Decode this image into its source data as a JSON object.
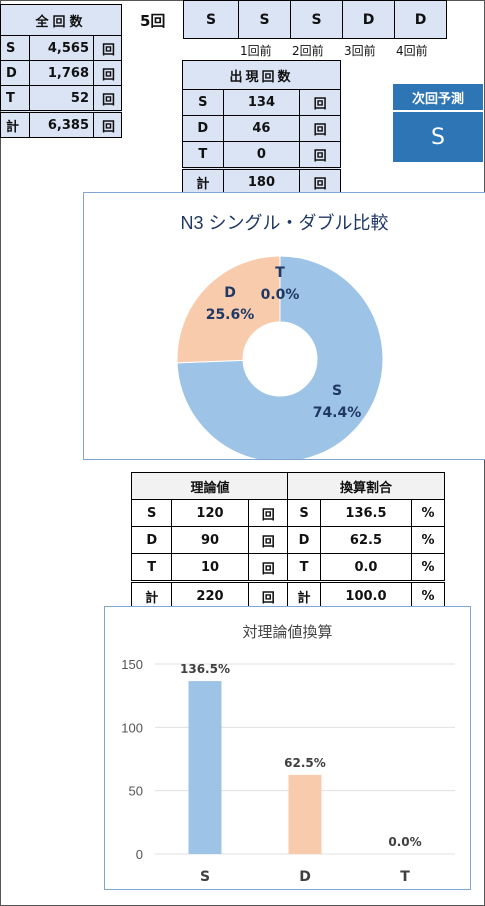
{
  "totals": {
    "title": "全回数",
    "rows": [
      {
        "label": "S",
        "value": "4,565",
        "unit": "回"
      },
      {
        "label": "D",
        "value": "1,768",
        "unit": "回"
      },
      {
        "label": "T",
        "value": "52",
        "unit": "回"
      }
    ],
    "sum": {
      "label": "計",
      "value": "6,385",
      "unit": "回"
    }
  },
  "history": {
    "label": "5回",
    "cells": [
      "S",
      "S",
      "S",
      "D",
      "D"
    ],
    "ago_labels": [
      "1回前",
      "2回前",
      "3回前",
      "4回前"
    ]
  },
  "appearance": {
    "title": "出現回数",
    "rows": [
      {
        "label": "S",
        "value": "134",
        "unit": "回"
      },
      {
        "label": "D",
        "value": "46",
        "unit": "回"
      },
      {
        "label": "T",
        "value": "0",
        "unit": "回"
      }
    ],
    "sum": {
      "label": "計",
      "value": "180",
      "unit": "回"
    }
  },
  "next": {
    "title": "次回予測",
    "value": "S"
  },
  "theory": {
    "title": "理論値",
    "rows": [
      {
        "label": "S",
        "value": "120",
        "unit": "回"
      },
      {
        "label": "D",
        "value": "90",
        "unit": "回"
      },
      {
        "label": "T",
        "value": "10",
        "unit": "回"
      }
    ],
    "sum": {
      "label": "計",
      "value": "220",
      "unit": "回"
    }
  },
  "ratio": {
    "title": "換算割合",
    "rows": [
      {
        "label": "S",
        "value": "136.5",
        "unit": "%"
      },
      {
        "label": "D",
        "value": "62.5",
        "unit": "%"
      },
      {
        "label": "T",
        "value": "0.0",
        "unit": "%"
      }
    ],
    "sum": {
      "label": "計",
      "value": "100.0",
      "unit": "%"
    }
  },
  "chart_data": [
    {
      "type": "pie",
      "title": "N3 シングル・ダブル比較",
      "categories": [
        "S",
        "D",
        "T"
      ],
      "values": [
        74.4,
        25.6,
        0.0
      ],
      "labels": [
        "74.4%",
        "25.6%",
        "0.0%"
      ],
      "colors": [
        "#9dc3e6",
        "#f8cbad",
        "#a9d18e"
      ],
      "donut": true
    },
    {
      "type": "bar",
      "title": "対理論値換算",
      "categories": [
        "S",
        "D",
        "T"
      ],
      "values": [
        136.5,
        62.5,
        0.0
      ],
      "labels": [
        "136.5%",
        "62.5%",
        "0.0%"
      ],
      "colors": [
        "#9dc3e6",
        "#f8cbad",
        "#a9d18e"
      ],
      "ylim": [
        0,
        150
      ],
      "yticks": [
        "0",
        "50",
        "100",
        "150"
      ],
      "grid": true
    }
  ]
}
